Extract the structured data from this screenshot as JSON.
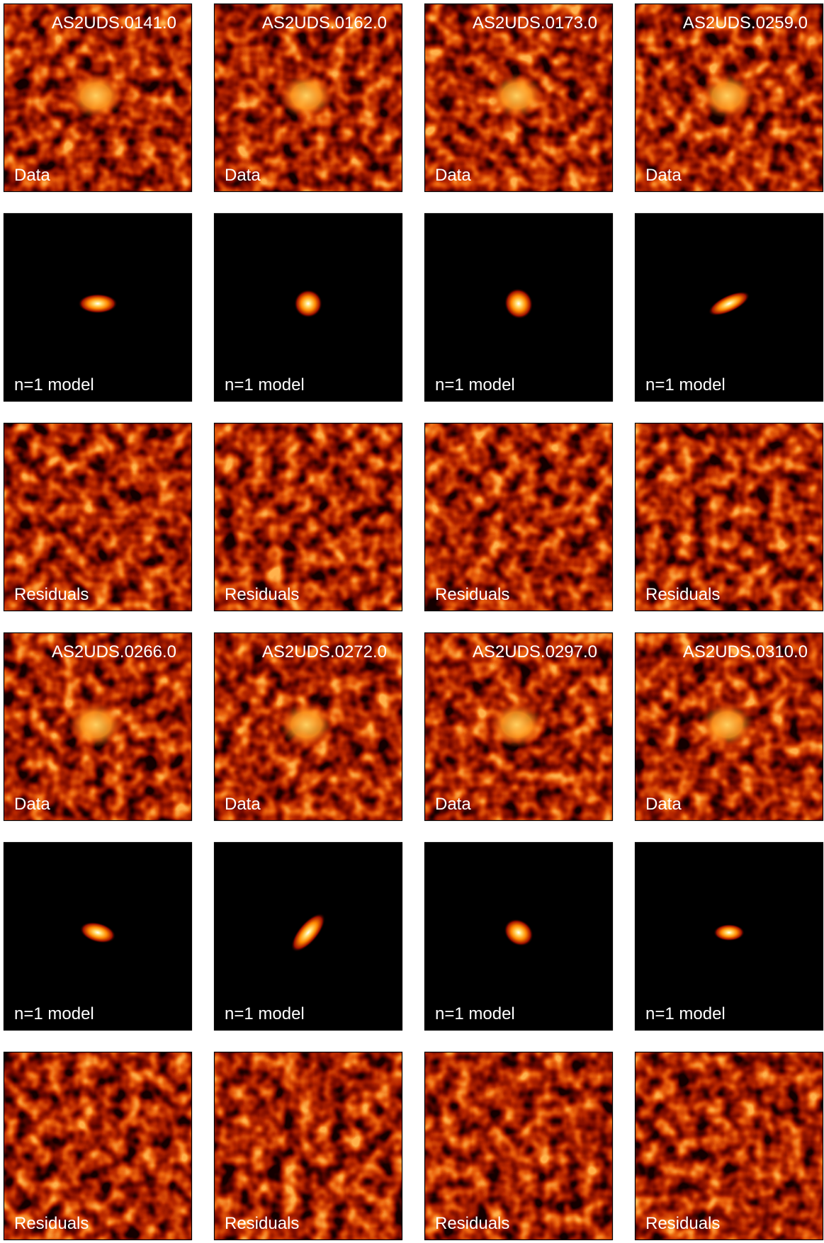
{
  "row_labels": [
    "Data",
    "n=1 model",
    "Residuals"
  ],
  "groups": [
    {
      "sources": [
        "AS2UDS.0141.0",
        "AS2UDS.0162.0",
        "AS2UDS.0173.0",
        "AS2UDS.0259.0"
      ]
    },
    {
      "sources": [
        "AS2UDS.0266.0",
        "AS2UDS.0272.0",
        "AS2UDS.0297.0",
        "AS2UDS.0310.0"
      ]
    }
  ]
}
